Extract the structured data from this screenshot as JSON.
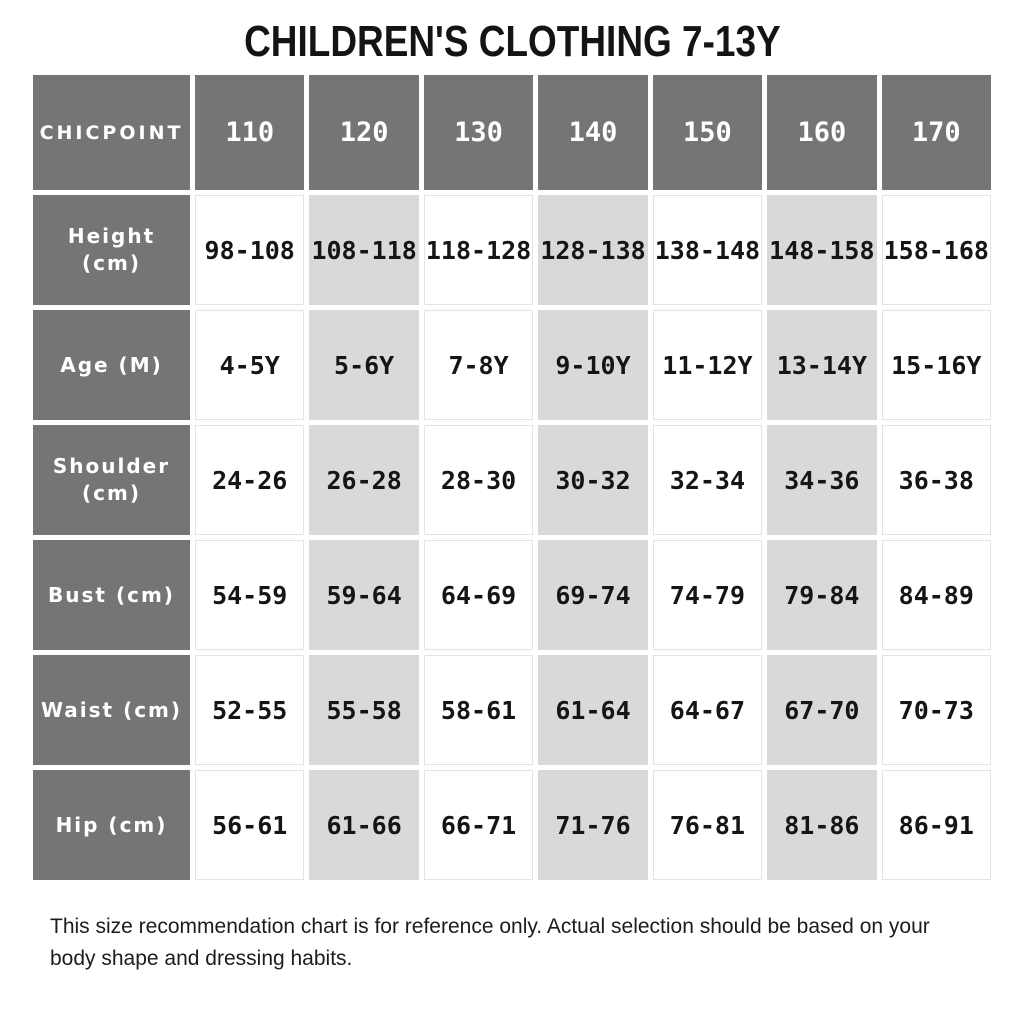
{
  "chart_data": {
    "type": "table",
    "title": "CHILDREN'S CLOTHING 7-13Y",
    "corner_label": "CHICPOINT",
    "columns": [
      "110",
      "120",
      "130",
      "140",
      "150",
      "160",
      "170"
    ],
    "rows": [
      {
        "label": "Height (cm)",
        "values": [
          "98-108",
          "108-118",
          "118-128",
          "128-138",
          "138-148",
          "148-158",
          "158-168"
        ]
      },
      {
        "label": "Age (M)",
        "values": [
          "4-5Y",
          "5-6Y",
          "7-8Y",
          "9-10Y",
          "11-12Y",
          "13-14Y",
          "15-16Y"
        ]
      },
      {
        "label": "Shoulder (cm)",
        "values": [
          "24-26",
          "26-28",
          "28-30",
          "30-32",
          "32-34",
          "34-36",
          "36-38"
        ]
      },
      {
        "label": "Bust (cm)",
        "values": [
          "54-59",
          "59-64",
          "64-69",
          "69-74",
          "74-79",
          "79-84",
          "84-89"
        ]
      },
      {
        "label": "Waist (cm)",
        "values": [
          "52-55",
          "55-58",
          "58-61",
          "61-64",
          "64-67",
          "67-70",
          "70-73"
        ]
      },
      {
        "label": "Hip (cm)",
        "values": [
          "56-61",
          "61-66",
          "66-71",
          "71-76",
          "76-81",
          "81-86",
          "86-91"
        ]
      }
    ],
    "footnote": "This size recommendation chart is for reference only. Actual selection should be based on your body shape and dressing habits.",
    "layout": {
      "legend": "none",
      "grid": "cell-gaps",
      "shaded_columns": [
        "120",
        "140",
        "160"
      ]
    },
    "colors": {
      "header_bg": "#757575",
      "header_text": "#ffffff",
      "shaded_cell_bg": "#d9d9d9",
      "cell_bg": "#ffffff",
      "cell_border": "#e3e3e3",
      "cell_text": "#151515",
      "title_text": "#141414"
    }
  }
}
